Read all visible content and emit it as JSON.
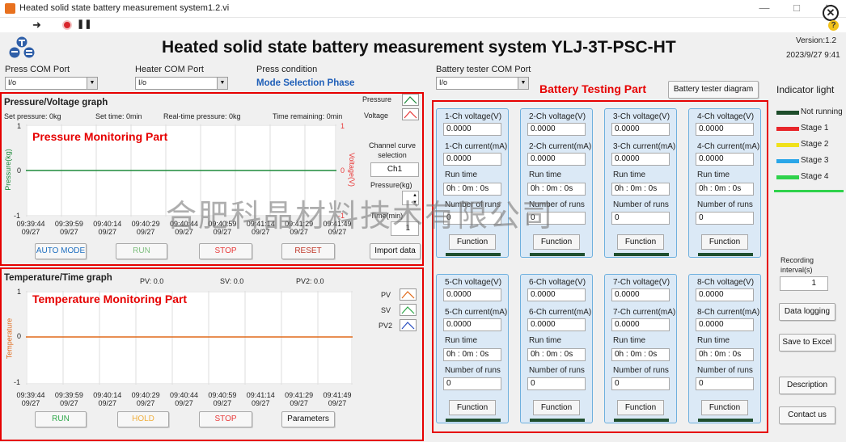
{
  "window": {
    "title": "Heated solid state battery measurement system1.2.vi",
    "minimize": "—",
    "maximize": "□",
    "close": "✕"
  },
  "header": {
    "title": "Heated solid state battery measurement system   YLJ-3T-PSC-HT",
    "version": "Version:1.2",
    "datetime": "2023/9/27 9:41"
  },
  "ports": {
    "press_com": {
      "label": "Press COM Port",
      "value": "I/o"
    },
    "heater_com": {
      "label": "Heater COM Port",
      "value": "I/o"
    },
    "press_condition": {
      "label": "Press condition",
      "value": "Mode Selection Phase"
    },
    "battery_com": {
      "label": "Battery tester COM Port",
      "value": "I/o"
    }
  },
  "parts": {
    "pressure": "Pressure Monitoring Part",
    "temperature": "Temperature Monitoring Part",
    "battery": "Battery Testing Part"
  },
  "pressure_graph": {
    "title": "Pressure/Voltage graph",
    "set_pressure": "Set pressure:",
    "set_pressure_val": "0kg",
    "set_time": "Set time:",
    "set_time_val": "0min",
    "realtime_pressure": "Real-time pressure:",
    "realtime_pressure_val": "0kg",
    "time_remaining": "Time remaining:",
    "time_remaining_val": "0min",
    "ylabel_left": "Pressure(kg)",
    "ylabel_right": "Voltage(V)",
    "yticks_left": [
      "1",
      "0",
      "-1"
    ],
    "yticks_right": [
      "1",
      "0",
      "-1"
    ],
    "legend_pressure": "Pressure",
    "legend_voltage": "Voltage",
    "channel_curve_label": "Channel curve selection",
    "channel_value": "Ch1",
    "pressure_kg_label": "Pressure(kg)",
    "time_min_label": "Time(min)",
    "time_value": "1",
    "buttons": {
      "auto": "AUTO MODE",
      "run": "RUN",
      "stop": "STOP",
      "reset": "RESET",
      "import": "Import data"
    }
  },
  "temperature_graph": {
    "title": "Temperature/Time graph",
    "pv": "PV:",
    "pv_val": "0.0",
    "sv": "SV:",
    "sv_val": "0.0",
    "pv2": "PV2:",
    "pv2_val": "0.0",
    "ylabel": "Temperature",
    "yticks": [
      "1",
      "0",
      "-1"
    ],
    "legend": [
      "PV",
      "SV",
      "PV2"
    ],
    "buttons": {
      "run": "RUN",
      "hold": "HOLD",
      "stop": "STOP",
      "params": "Parameters"
    }
  },
  "xticks": [
    {
      "time": "09:39:44",
      "date": "09/27"
    },
    {
      "time": "09:39:59",
      "date": "09/27"
    },
    {
      "time": "09:40:14",
      "date": "09/27"
    },
    {
      "time": "09:40:29",
      "date": "09/27"
    },
    {
      "time": "09:40:44",
      "date": "09/27"
    },
    {
      "time": "09:40:59",
      "date": "09/27"
    },
    {
      "time": "09:41:14",
      "date": "09/27"
    },
    {
      "time": "09:41:29",
      "date": "09/27"
    },
    {
      "time": "09:41:49",
      "date": "09/27"
    }
  ],
  "battery": {
    "diagram_button": "Battery tester diagram",
    "channels": [
      {
        "voltage_label": "1-Ch voltage(V)",
        "voltage": "0.0000",
        "current_label": "1-Ch current(mA)",
        "current": "0.0000",
        "runtime_label": "Run time",
        "runtime": "0h : 0m : 0s",
        "runs_label": "Number of runs",
        "runs": "0",
        "function": "Function"
      },
      {
        "voltage_label": "2-Ch voltage(V)",
        "voltage": "0.0000",
        "current_label": "2-Ch current(mA)",
        "current": "0.0000",
        "runtime_label": "Run time",
        "runtime": "0h : 0m : 0s",
        "runs_label": "Number of runs",
        "runs": "0",
        "function": "Function"
      },
      {
        "voltage_label": "3-Ch voltage(V)",
        "voltage": "0.0000",
        "current_label": "3-Ch current(mA)",
        "current": "0.0000",
        "runtime_label": "Run time",
        "runtime": "0h : 0m : 0s",
        "runs_label": "Number of runs",
        "runs": "0",
        "function": "Function"
      },
      {
        "voltage_label": "4-Ch voltage(V)",
        "voltage": "0.0000",
        "current_label": "4-Ch current(mA)",
        "current": "0.0000",
        "runtime_label": "Run time",
        "runtime": "0h : 0m : 0s",
        "runs_label": "Number of runs",
        "runs": "0",
        "function": "Function"
      },
      {
        "voltage_label": "5-Ch voltage(V)",
        "voltage": "0.0000",
        "current_label": "5-Ch current(mA)",
        "current": "0.0000",
        "runtime_label": "Run time",
        "runtime": "0h : 0m : 0s",
        "runs_label": "Number of runs",
        "runs": "0",
        "function": "Function"
      },
      {
        "voltage_label": "6-Ch voltage(V)",
        "voltage": "0.0000",
        "current_label": "6-Ch current(mA)",
        "current": "0.0000",
        "runtime_label": "Run time",
        "runtime": "0h : 0m : 0s",
        "runs_label": "Number of runs",
        "runs": "0",
        "function": "Function"
      },
      {
        "voltage_label": "7-Ch voltage(V)",
        "voltage": "0.0000",
        "current_label": "7-Ch current(mA)",
        "current": "0.0000",
        "runtime_label": "Run time",
        "runtime": "0h : 0m : 0s",
        "runs_label": "Number of runs",
        "runs": "0",
        "function": "Function"
      },
      {
        "voltage_label": "8-Ch voltage(V)",
        "voltage": "0.0000",
        "current_label": "8-Ch current(mA)",
        "current": "0.0000",
        "runtime_label": "Run time",
        "runtime": "0h : 0m : 0s",
        "runs_label": "Number of runs",
        "runs": "0",
        "function": "Function"
      }
    ]
  },
  "indicator": {
    "title": "Indicator light",
    "items": [
      {
        "label": "Not running",
        "color": "#1e4d2b"
      },
      {
        "label": "Stage 1",
        "color": "#e8262a"
      },
      {
        "label": "Stage 2",
        "color": "#f0e11b"
      },
      {
        "label": "Stage 3",
        "color": "#2aa6e8"
      },
      {
        "label": "Stage 4",
        "color": "#2fd24b"
      }
    ]
  },
  "side": {
    "recording_label": "Recording interval(s)",
    "recording_value": "1",
    "data_logging": "Data logging",
    "save_excel": "Save to Excel",
    "description": "Description",
    "contact": "Contact us"
  },
  "watermark": "合肥科晶材料技术有限公司",
  "colors": {
    "accent_red": "#e60000",
    "card_bg": "#dbe9f6",
    "card_border": "#6fb0de",
    "pressure_green": "#1d8a3a",
    "voltage_red": "#e83a3a",
    "temp_orange": "#e06a1a"
  }
}
